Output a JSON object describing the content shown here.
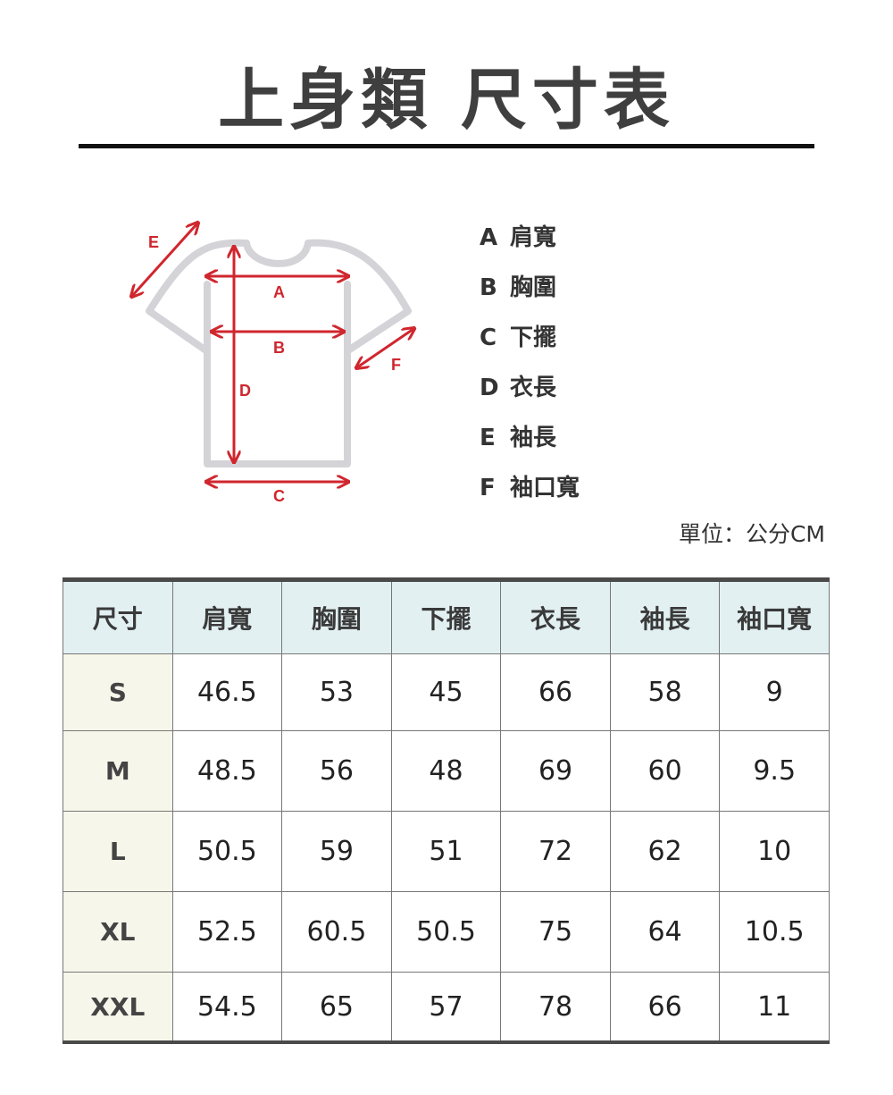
{
  "title": "上身類  尺寸表",
  "legend": [
    {
      "key": "A",
      "label": "肩寬"
    },
    {
      "key": "B",
      "label": "胸圍"
    },
    {
      "key": "C",
      "label": "下擺"
    },
    {
      "key": "D",
      "label": "衣長"
    },
    {
      "key": "E",
      "label": "袖長"
    },
    {
      "key": "F",
      "label": "袖口寬"
    }
  ],
  "diagram_labels": {
    "A": "A",
    "B": "B",
    "C": "C",
    "D": "D",
    "E": "E",
    "F": "F"
  },
  "unit": "單位：公分CM",
  "colors": {
    "arrow": "#d0262e",
    "shirt": "#d3d3d8",
    "header_bg": "#e2f0f2",
    "size_bg": "#f7f6ea"
  },
  "table": {
    "headers": [
      "尺寸",
      "肩寬",
      "胸圍",
      "下擺",
      "衣長",
      "袖長",
      "袖口寬"
    ],
    "rows": [
      [
        "S",
        "46.5",
        "53",
        "45",
        "66",
        "58",
        "9"
      ],
      [
        "M",
        "48.5",
        "56",
        "48",
        "69",
        "60",
        "9.5"
      ],
      [
        "L",
        "50.5",
        "59",
        "51",
        "72",
        "62",
        "10"
      ],
      [
        "XL",
        "52.5",
        "60.5",
        "50.5",
        "75",
        "64",
        "10.5"
      ],
      [
        "XXL",
        "54.5",
        "65",
        "57",
        "78",
        "66",
        "11"
      ]
    ]
  }
}
